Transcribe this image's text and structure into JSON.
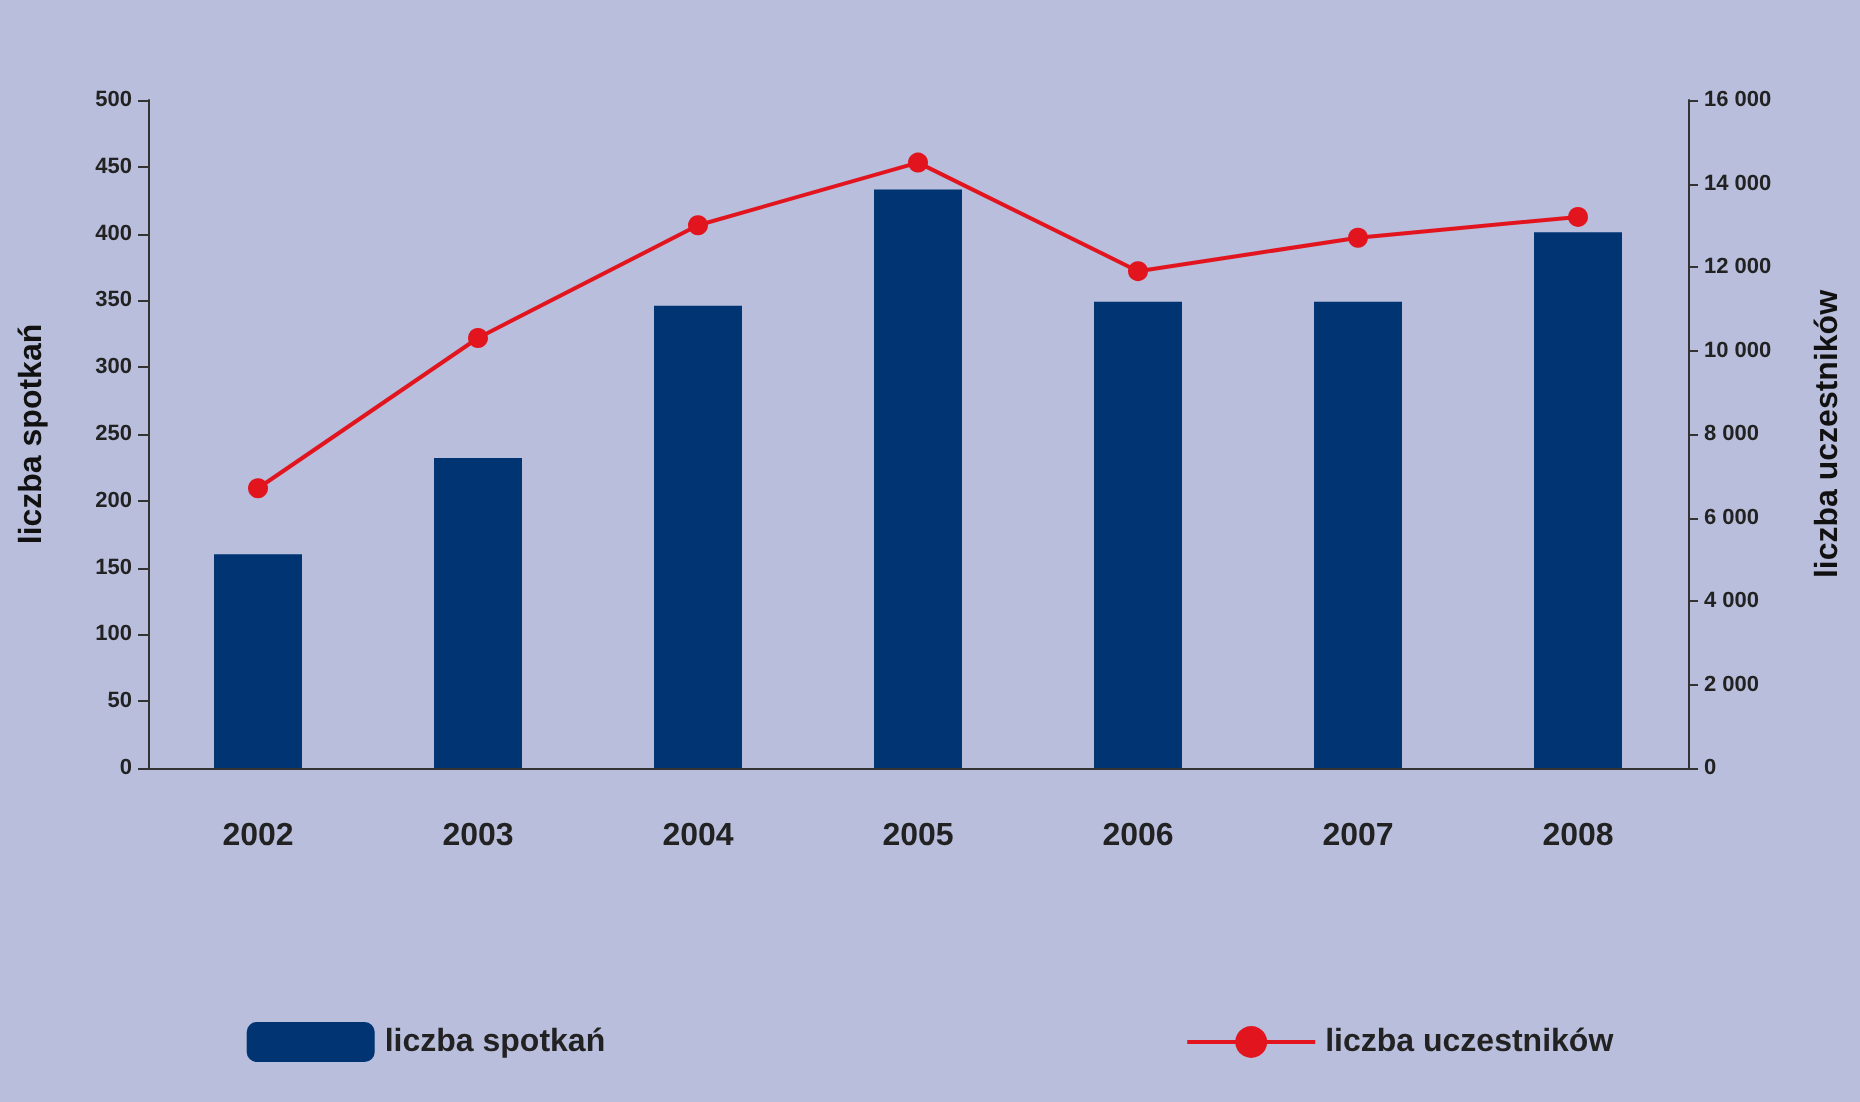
{
  "chart_data": {
    "type": "bar",
    "categories": [
      "2002",
      "2003",
      "2004",
      "2005",
      "2006",
      "2007",
      "2008"
    ],
    "ylabel": "liczba spotkań",
    "y2label": "liczba uczestników",
    "series": [
      {
        "name": "liczba spotkań",
        "color": "#003473",
        "values": [
          160,
          232,
          346,
          433,
          349,
          349,
          401
        ]
      },
      {
        "name": "liczba uczestników",
        "type": "line",
        "axis": "y2",
        "color": "#e2141e",
        "marker": "circle",
        "values": [
          6700,
          10300,
          13000,
          14500,
          11900,
          12700,
          13200
        ]
      }
    ],
    "ylim": [
      0,
      500
    ],
    "yticks": [
      0,
      50,
      100,
      150,
      200,
      250,
      300,
      350,
      400,
      450,
      500
    ],
    "y2lim": [
      0,
      16000
    ],
    "y2ticks": [
      0,
      {
        "value": 2000,
        "label": "2 000"
      },
      {
        "value": 4000,
        "label": "4 000"
      },
      {
        "value": 6000,
        "label": "6 000"
      },
      {
        "value": 8000,
        "label": "8 000"
      },
      {
        "value": 10000,
        "label": "10 000"
      },
      {
        "value": 12000,
        "label": "12 000"
      },
      {
        "value": 14000,
        "label": "14 000"
      },
      {
        "value": 16000,
        "label": "16 000"
      }
    ],
    "grid": false,
    "legend": "bottom"
  }
}
